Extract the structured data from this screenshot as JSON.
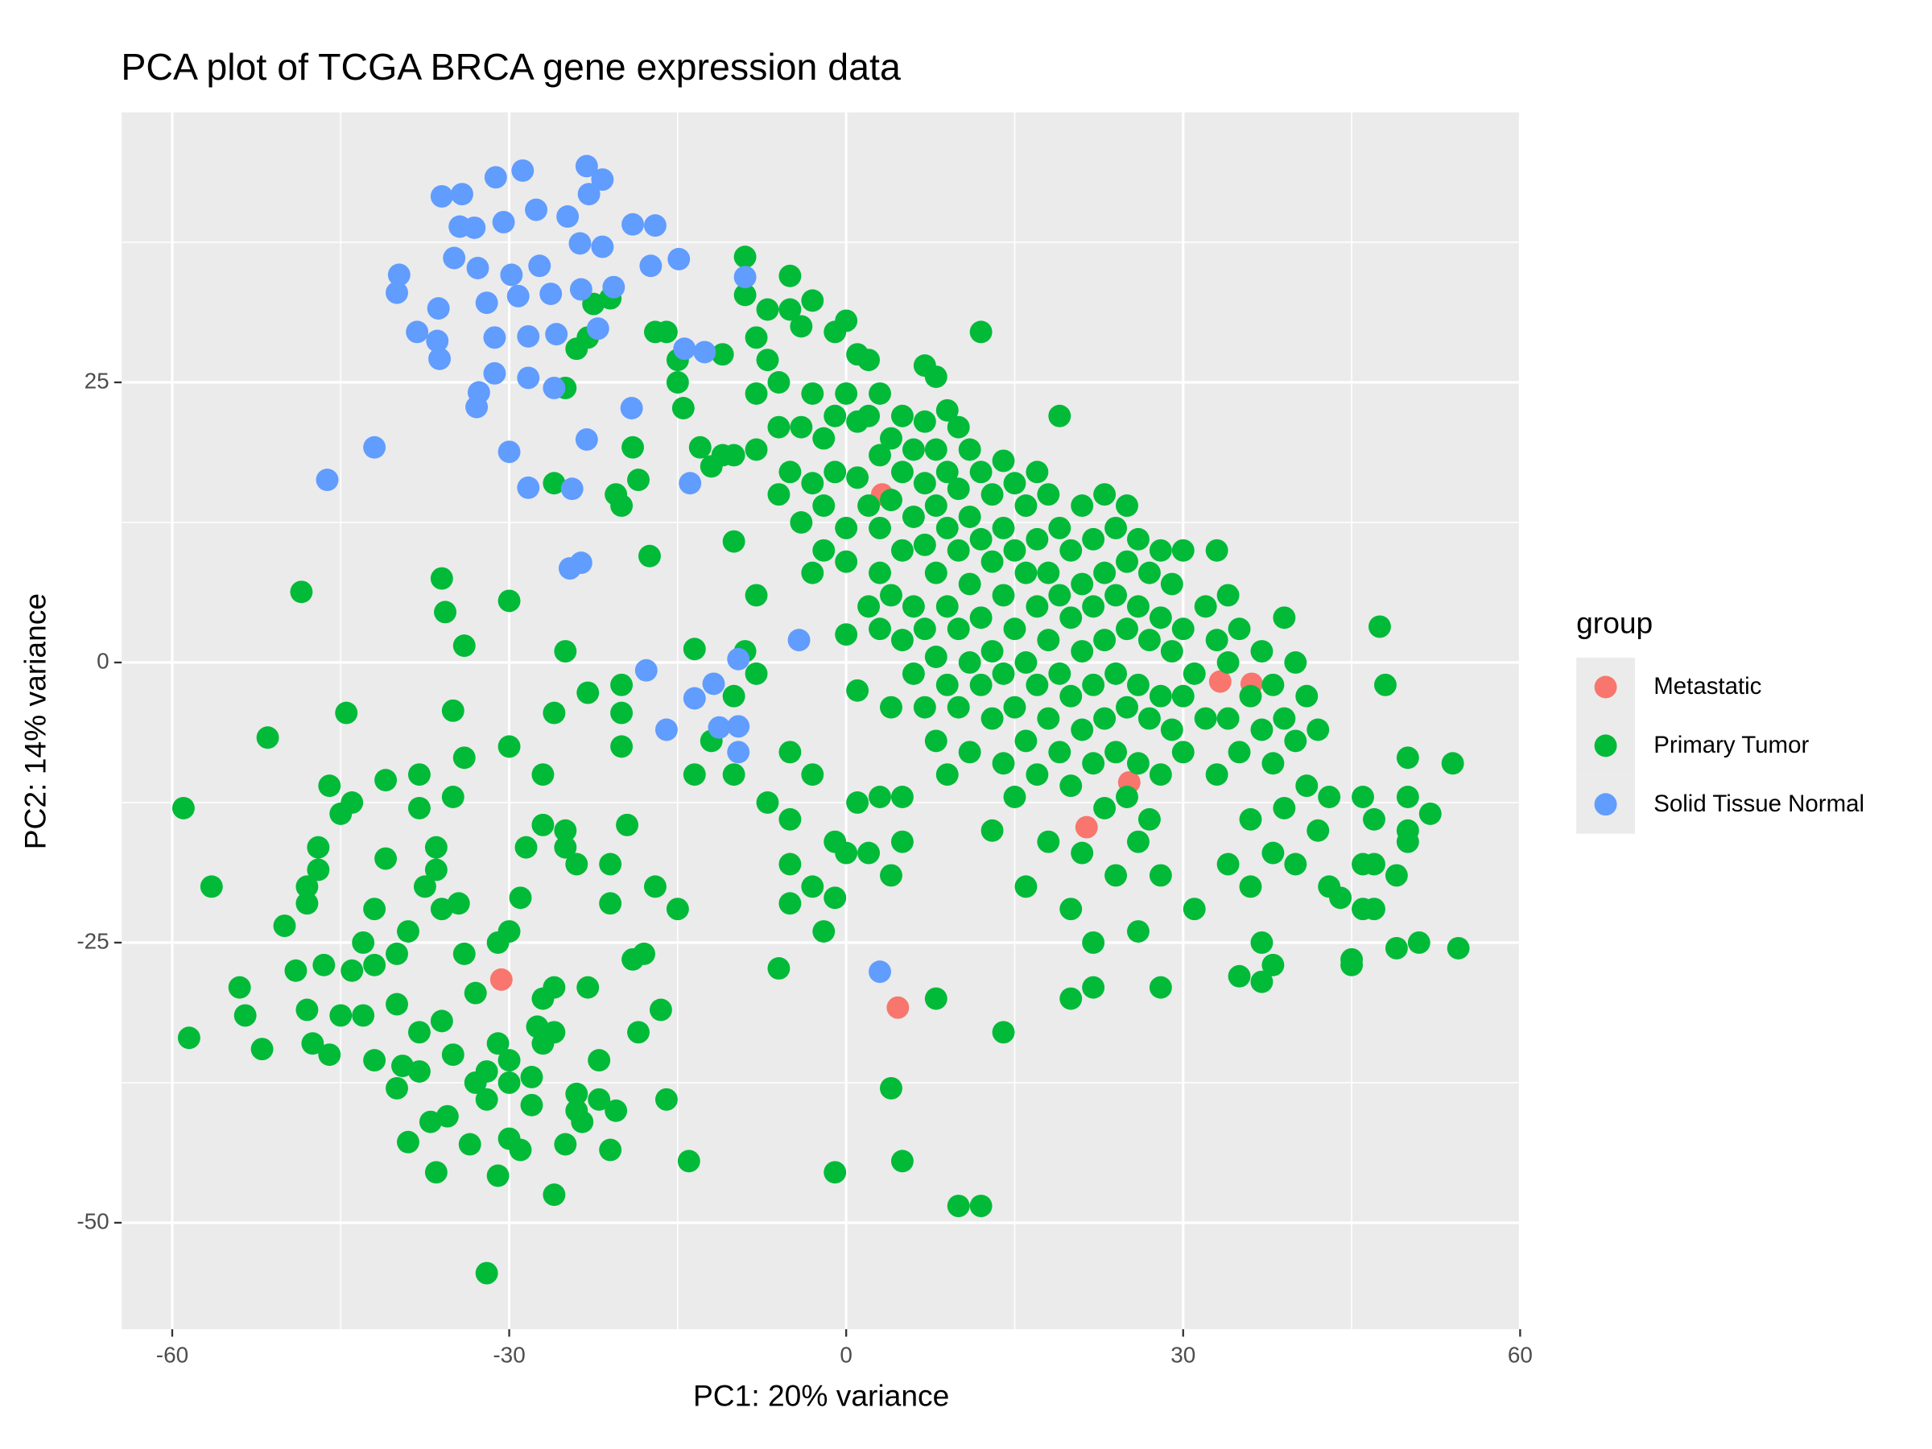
{
  "chart_data": {
    "type": "scatter",
    "title": "PCA plot of TCGA BRCA gene expression data",
    "x_label": "PC1: 20% variance",
    "y_label": "PC2: 14% variance",
    "legend_title": "group",
    "xlim": [
      -64.5,
      60
    ],
    "ylim": [
      -59.5,
      49.1
    ],
    "xticks": [
      -60,
      -30,
      0,
      30,
      60
    ],
    "yticks": [
      -50,
      -25,
      0,
      25
    ],
    "grid": true,
    "legend": "right",
    "series": [
      {
        "name": "Metastatic",
        "color": "#F8766D",
        "x": [
          3.2,
          33.3,
          36.1,
          25.2,
          21.4,
          -30.7,
          4.6
        ],
        "y": [
          15,
          -1.7,
          -1.9,
          -10.7,
          -14.7,
          -28.3,
          -30.8
        ]
      },
      {
        "name": "Primary Tumor",
        "color": "#00BA38",
        "x": [
          -59,
          -58.5,
          -56.5,
          -54,
          -53.5,
          -52,
          -51.5,
          -50,
          -49,
          -48,
          -48,
          -48,
          -47.5,
          -47,
          -47,
          -46.5,
          -46,
          -45,
          -46,
          -44.5,
          -44,
          -43,
          -43,
          -42,
          -42,
          -41,
          -41,
          -40,
          -40,
          -39.5,
          -39,
          -39,
          -38,
          -38,
          -37.5,
          -36.5,
          -36,
          -36,
          -35,
          -35,
          -34,
          -34,
          -33,
          -33,
          -32,
          -31,
          -31,
          -30,
          -30,
          -29,
          -28.5,
          -28,
          -27.5,
          -27,
          -27,
          -26,
          -25,
          -24,
          -23,
          -22,
          -21,
          -20.5,
          -19.5,
          -18.5,
          -18,
          -17,
          -16.5,
          -16,
          -15,
          -14,
          -35.5,
          -33.5,
          -37,
          -36.5,
          -32,
          -30,
          -26,
          -25,
          -24,
          -21,
          -19,
          -23.5,
          -22,
          -24,
          -28,
          -29,
          -32,
          -30,
          -42,
          -40,
          -44,
          -45,
          -38,
          -36.5,
          -34.5,
          -31,
          -27,
          -25,
          -21,
          -26,
          -38,
          -48.5,
          -36,
          -35.7,
          -34,
          -35,
          -30,
          -30,
          -27,
          -26,
          -25,
          -23,
          -20,
          -20,
          -20,
          -17.5,
          -13.5,
          -13.5,
          -12,
          -10,
          -10,
          -9,
          -8,
          -8,
          -7,
          -5,
          -5,
          -5,
          -5,
          -6,
          -3,
          -3,
          -2,
          -1,
          -1,
          0,
          1,
          2,
          3,
          4,
          5,
          5,
          4,
          5,
          8,
          10,
          12,
          14,
          -1,
          -21,
          -23,
          -22.5,
          -24,
          -25,
          -26,
          -20.5,
          -20,
          -19,
          -18.5,
          -17,
          -16,
          -15,
          -15,
          -14.5,
          -13,
          -12,
          -11,
          -11,
          -10,
          -10,
          -9,
          -9,
          -8,
          -8,
          -8,
          -7,
          -7,
          -6,
          -6,
          -6,
          -5,
          -5,
          -5,
          -4,
          -4,
          -4,
          -3,
          -3,
          -3,
          -3,
          -2,
          -2,
          -2,
          -1,
          -1,
          -1,
          0,
          0,
          0,
          0,
          0,
          1,
          1,
          1,
          1,
          2,
          2,
          2,
          2,
          3,
          3,
          3,
          3,
          3,
          4,
          4,
          4,
          4,
          5,
          5,
          5,
          5,
          6,
          6,
          6,
          6,
          7,
          7,
          7,
          7,
          7,
          7,
          8,
          8,
          8,
          8,
          8,
          8,
          9,
          9,
          9,
          9,
          9,
          9,
          10,
          10,
          10,
          10,
          10,
          11,
          11,
          11,
          11,
          11,
          12,
          12,
          12,
          12,
          12,
          13,
          13,
          13,
          13,
          13,
          14,
          14,
          14,
          14,
          14,
          15,
          15,
          15,
          15,
          15,
          16,
          16,
          16,
          16,
          16,
          17,
          17,
          17,
          17,
          17,
          18,
          18,
          18,
          18,
          18,
          19,
          19,
          19,
          19,
          19,
          20,
          20,
          20,
          20,
          20,
          20,
          21,
          21,
          21,
          21,
          21,
          22,
          22,
          22,
          22,
          22,
          22,
          23,
          23,
          23,
          23,
          23,
          24,
          24,
          24,
          24,
          24,
          25,
          25,
          25,
          25,
          25,
          26,
          26,
          26,
          26,
          26,
          26,
          27,
          27,
          27,
          27,
          28,
          28,
          28,
          28,
          28,
          28,
          29,
          29,
          29,
          30,
          30,
          30,
          30,
          31,
          31,
          32,
          32,
          33,
          33,
          33,
          34,
          34,
          34,
          34,
          35,
          35,
          35,
          36,
          36,
          36,
          37,
          37,
          37,
          37,
          38,
          38,
          38,
          38,
          39,
          39,
          39,
          40,
          40,
          40,
          41,
          41,
          42,
          42,
          43,
          43,
          44,
          45,
          45,
          46,
          46,
          46,
          47,
          47,
          47,
          47.5,
          48,
          49,
          49,
          50,
          50,
          50,
          51,
          52,
          54,
          54.5,
          50
        ],
        "y": [
          -13,
          -33.5,
          -20,
          -29,
          -31.5,
          -34.5,
          -6.7,
          -23.5,
          -27.5,
          -20,
          -31,
          -21.5,
          -34,
          -16.5,
          -18.5,
          -27,
          -35,
          -31.5,
          -11,
          -4.5,
          -12.5,
          -31.5,
          -25,
          -35.5,
          -27,
          -10.5,
          -17.5,
          -38,
          -30.5,
          -36,
          -42.8,
          -24,
          -10,
          -33,
          -20,
          -18.5,
          -32,
          -22,
          -35,
          -12,
          -8.5,
          -26,
          -37.5,
          -29.5,
          -39,
          -45.8,
          -34,
          -42.5,
          -24,
          -21,
          -16.5,
          -37,
          -32.5,
          -14.5,
          -34,
          -47.5,
          -43,
          -38.5,
          -29,
          -35.5,
          -43.5,
          -40,
          -14.5,
          -33,
          -26,
          -20,
          -31,
          -39,
          -22,
          -44.5,
          -40.5,
          -43,
          -41,
          -45.5,
          -54.5,
          -35.5,
          -29,
          -15,
          -18,
          -21.5,
          -26.5,
          -41,
          -39,
          -40,
          -39.5,
          -43.5,
          -36.5,
          -37.5,
          -22,
          -26,
          -27.5,
          -13.5,
          -13,
          -16.5,
          -21.5,
          -25,
          -30,
          -16.5,
          -18,
          -33,
          -36.5,
          6.3,
          7.5,
          4.5,
          1.5,
          -4.3,
          5.5,
          -7.5,
          -10,
          -4.5,
          1,
          -2.7,
          -2,
          -4.5,
          -7.5,
          9.5,
          -10,
          1.2,
          -7,
          -3,
          -10,
          1,
          6,
          -1,
          -12.5,
          -8,
          -14,
          -18,
          -21.5,
          -27.3,
          -20,
          -10,
          -24,
          -16,
          -21,
          -17,
          -12.5,
          -17,
          -12,
          -19,
          -16,
          -12,
          -38,
          -44.5,
          -30,
          -48.5,
          -48.5,
          -33,
          -45.5,
          32.5,
          29,
          32,
          28,
          24.5,
          16,
          15,
          14,
          19.2,
          16.3,
          29.5,
          29.5,
          27,
          25,
          22.7,
          19.2,
          17.5,
          27.5,
          18.5,
          10.8,
          18.5,
          36.2,
          32.8,
          29,
          24,
          19,
          31.5,
          27,
          25,
          21,
          15,
          34.5,
          31.5,
          17,
          30,
          21,
          12.5,
          32.3,
          24,
          16,
          8,
          20,
          14,
          10,
          29.5,
          22,
          17,
          30.5,
          24,
          12,
          9,
          2.5,
          27.5,
          21.5,
          16.5,
          -2.5,
          27,
          22,
          14,
          5,
          24,
          18.5,
          12,
          8,
          3,
          20,
          14.5,
          6,
          -4,
          22,
          17,
          10,
          2,
          19,
          13,
          5,
          -1,
          26.5,
          21.5,
          16,
          10.5,
          3,
          -4,
          25.5,
          19,
          14,
          8,
          0.5,
          -7,
          22.5,
          17,
          12,
          5,
          -2,
          -10,
          21,
          15.5,
          10,
          3,
          -4,
          19,
          13,
          7,
          0,
          -8,
          29.5,
          17,
          11,
          4,
          -2,
          15,
          9,
          1,
          -5,
          -15,
          18,
          12,
          6,
          -1,
          -9,
          16,
          10,
          3,
          -4,
          -12,
          14,
          8,
          0,
          -7,
          -20,
          17,
          11,
          5,
          -2,
          -10,
          15,
          8,
          2,
          -5,
          -16,
          22,
          12,
          6,
          -1,
          -8,
          10,
          4,
          -3,
          -11,
          -22,
          -30,
          14,
          7,
          1,
          -6,
          -17,
          11,
          5,
          -2,
          -9,
          -25,
          -29,
          15,
          8,
          2,
          -5,
          -13,
          12,
          6,
          -1,
          -8,
          -19,
          14,
          9,
          3,
          -4,
          -12,
          11,
          5,
          -2,
          -9,
          -16,
          -24,
          8,
          2,
          -5,
          -14,
          10,
          4,
          -3,
          -10,
          -19,
          -29,
          7,
          1,
          -6,
          10,
          3,
          -3,
          -8,
          -1,
          -22,
          5,
          -5,
          10,
          2,
          -10,
          6,
          0,
          -5,
          -18,
          3,
          -8,
          -28,
          -3,
          -14,
          -20,
          1,
          -6,
          -25,
          -28.5,
          -2,
          -9,
          -17,
          -27,
          4,
          -5,
          -13,
          0,
          -7,
          -18,
          -3,
          -11,
          -6,
          -15,
          -12,
          -20,
          -21,
          -26.5,
          -27,
          -12,
          -18,
          -22,
          -18,
          -14,
          -22,
          3.2,
          -2,
          -25.5,
          -19,
          -8.5,
          -12,
          -15,
          -25,
          -13.5,
          -9,
          -25.5,
          -16
        ]
      },
      {
        "name": "Solid Tissue Normal",
        "color": "#619CFF",
        "x": [
          -36,
          -34.2,
          -31.2,
          -28.8,
          -23.1,
          -21.7,
          -22.9,
          -24.8,
          -27.6,
          -30.5,
          -33.1,
          -34.4,
          -19,
          -17,
          -17.4,
          -14.9,
          -21.7,
          -23.7,
          -39.8,
          -40,
          -36.3,
          -34.9,
          -32.8,
          -29.8,
          -27.3,
          -26.3,
          -23.6,
          -20.7,
          -32,
          -29.2,
          -38.2,
          -36.4,
          -36.2,
          -31.3,
          -28.3,
          -25.8,
          -22.1,
          -31.3,
          -28.3,
          -26,
          -32.7,
          -32.9,
          -19.1,
          -23.1,
          -30,
          -42,
          -46.2,
          -28.3,
          -24.4,
          -13.9,
          -14.4,
          -12.6,
          -23.6,
          -24.6,
          -17.8,
          -16,
          -13.5,
          -11.8,
          -11.3,
          -9.6,
          -9.6,
          -9.6,
          -4.2,
          3,
          -9
        ],
        "y": [
          41.6,
          41.8,
          43.3,
          43.9,
          44.3,
          43.1,
          41.8,
          39.8,
          40.4,
          39.3,
          38.8,
          38.9,
          39.1,
          39,
          35.4,
          36,
          37.1,
          37.4,
          34.6,
          33,
          31.6,
          36.1,
          35.2,
          34.6,
          35.4,
          32.9,
          33.3,
          33.5,
          32.1,
          32.7,
          29.5,
          28.7,
          27.1,
          29,
          29.1,
          29.3,
          29.8,
          25.8,
          25.4,
          24.5,
          24.1,
          22.8,
          22.7,
          19.9,
          18.8,
          19.2,
          16.3,
          15.6,
          15.5,
          16,
          28,
          27.7,
          8.9,
          8.4,
          -0.7,
          -6,
          -3.2,
          -1.9,
          -5.8,
          0.3,
          -5.7,
          -8,
          2,
          -27.6,
          34.4
        ]
      }
    ]
  }
}
